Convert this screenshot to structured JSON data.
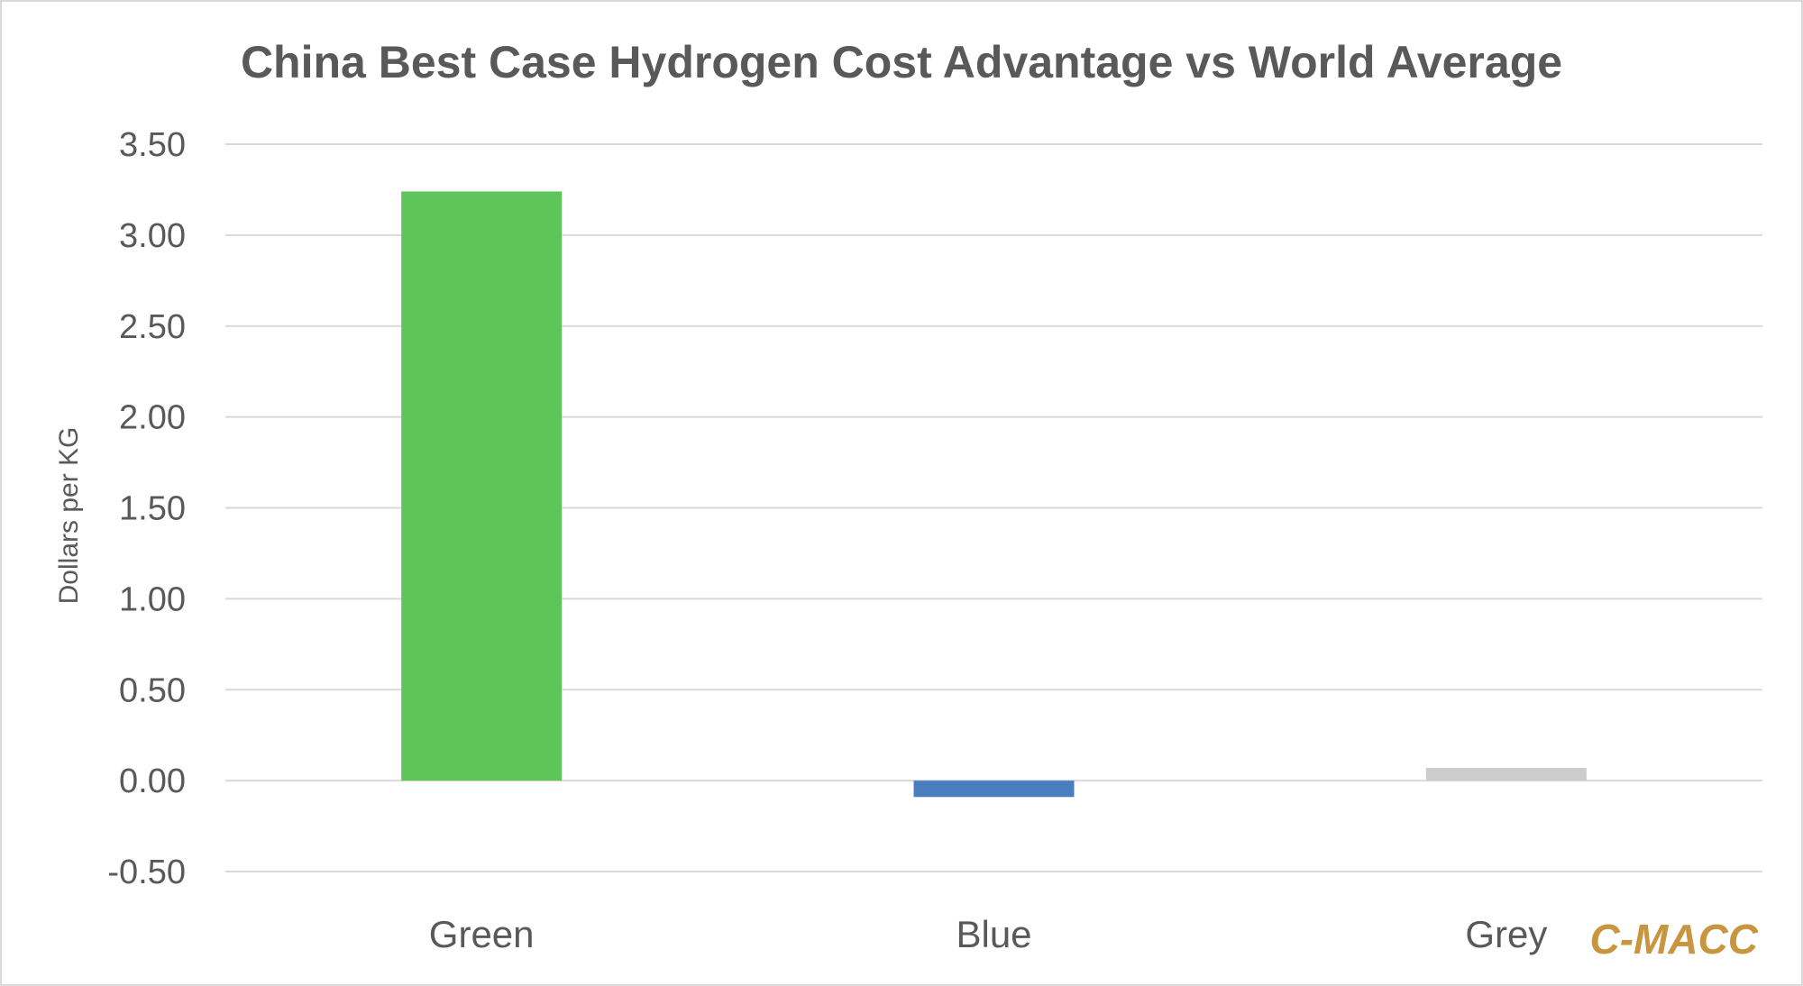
{
  "chart_data": {
    "type": "bar",
    "title": "China Best Case Hydrogen Cost Advantage vs World Average",
    "xlabel": "",
    "ylabel": "Dollars per KG",
    "categories": [
      "Green",
      "Blue",
      "Grey"
    ],
    "values": [
      3.24,
      -0.09,
      0.07
    ],
    "colors": [
      "#5ec559",
      "#4a7ebf",
      "#cccccc"
    ],
    "ylim": [
      -0.5,
      3.5
    ],
    "yticks": [
      "3.50",
      "3.00",
      "2.50",
      "2.00",
      "1.50",
      "1.00",
      "0.50",
      "0.00",
      "-0.50"
    ],
    "grid": true,
    "legend": "none"
  },
  "watermark": "C-MACC",
  "colors": {
    "text": "#595959",
    "grid": "#d9d9d9",
    "watermark": "#c8963e"
  }
}
